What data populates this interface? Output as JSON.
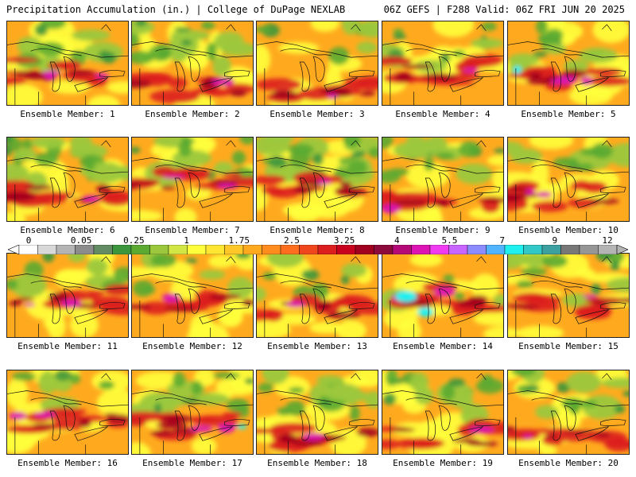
{
  "header": {
    "left": "Precipitation Accumulation (in.) | College of DuPage NEXLAB",
    "right": "06Z GEFS | F288 Valid: 06Z FRI JUN 20 2025"
  },
  "members": [
    {
      "label": "Ensemble Member: 1",
      "pattern": 1
    },
    {
      "label": "Ensemble Member: 2",
      "pattern": 2
    },
    {
      "label": "Ensemble Member: 3",
      "pattern": 3
    },
    {
      "label": "Ensemble Member: 4",
      "pattern": 4
    },
    {
      "label": "Ensemble Member: 5",
      "pattern": 5
    },
    {
      "label": "Ensemble Member: 6",
      "pattern": 6
    },
    {
      "label": "Ensemble Member: 7",
      "pattern": 7
    },
    {
      "label": "Ensemble Member: 8",
      "pattern": 8
    },
    {
      "label": "Ensemble Member: 9",
      "pattern": 9
    },
    {
      "label": "Ensemble Member: 10",
      "pattern": 10
    },
    {
      "label": "Ensemble Member: 11",
      "pattern": 11
    },
    {
      "label": "Ensemble Member: 12",
      "pattern": 12
    },
    {
      "label": "Ensemble Member: 13",
      "pattern": 13
    },
    {
      "label": "Ensemble Member: 14",
      "pattern": 14
    },
    {
      "label": "Ensemble Member: 15",
      "pattern": 15
    },
    {
      "label": "Ensemble Member: 16",
      "pattern": 16
    },
    {
      "label": "Ensemble Member: 17",
      "pattern": 17
    },
    {
      "label": "Ensemble Member: 18",
      "pattern": 18
    },
    {
      "label": "Ensemble Member: 19",
      "pattern": 19
    },
    {
      "label": "Ensemble Member: 20",
      "pattern": 20
    }
  ],
  "colorbar": {
    "labels": [
      "0",
      "0.05",
      "0.25",
      "1",
      "1.75",
      "2.5",
      "3.25",
      "4",
      "5.5",
      "7",
      "9",
      "12"
    ],
    "colors": [
      "#ffffff",
      "#d8d8d8",
      "#b4b4b4",
      "#8c8c8c",
      "#648c64",
      "#3c963c",
      "#5aaa32",
      "#9bc83c",
      "#d2e646",
      "#ffff3c",
      "#ffe632",
      "#ffc828",
      "#ffaa1e",
      "#ff8c1e",
      "#ff6e1e",
      "#f0461e",
      "#dc1e1e",
      "#c8001e",
      "#a0001e",
      "#8c0a3c",
      "#b40a78",
      "#dc14b4",
      "#f03cf0",
      "#c864ff",
      "#8c8cff",
      "#50b4ff",
      "#1ef0f0",
      "#32c8c8",
      "#3ca0a0",
      "#787878",
      "#969696",
      "#b4b4b4"
    ]
  },
  "palette": {
    "green_dark": "#3c963c",
    "green": "#5aaa32",
    "green_light": "#9bc83c",
    "yellow": "#ffff3c",
    "orange": "#ffaa1e",
    "red": "#dc1e1e",
    "maroon": "#a0001e",
    "magenta": "#dc14b4",
    "cyan": "#1ef0f0"
  }
}
